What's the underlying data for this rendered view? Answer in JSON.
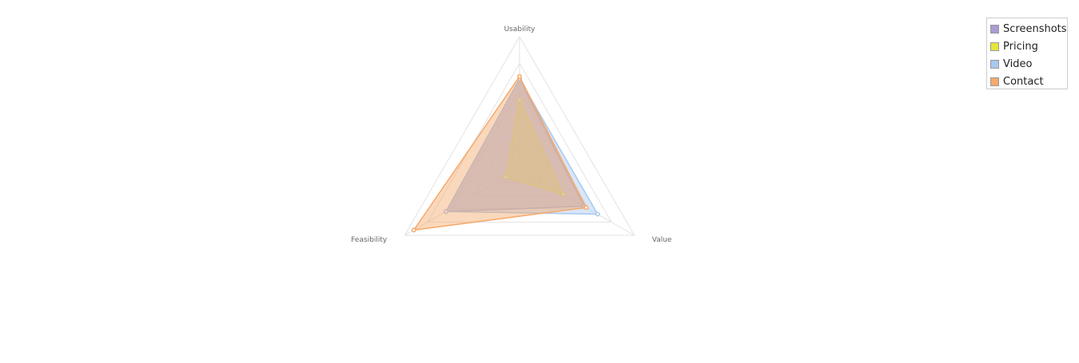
{
  "chart_data": {
    "type": "radar",
    "axes": [
      "Usability",
      "Value",
      "Feasibility"
    ],
    "range": [
      0,
      5
    ],
    "grid_levels": 5,
    "legend_position": "top-right",
    "series": [
      {
        "name": "Screenshots",
        "color": "#a99bd1",
        "values": [
          3.4,
          2.8,
          3.2
        ]
      },
      {
        "name": "Pricing",
        "color": "#e5e53a",
        "values": [
          2.6,
          1.9,
          0.6
        ]
      },
      {
        "name": "Video",
        "color": "#a8c8ef",
        "values": [
          3.4,
          3.4,
          3.2
        ]
      },
      {
        "name": "Contact",
        "color": "#f5a96b",
        "values": [
          3.5,
          2.9,
          4.6
        ]
      }
    ]
  }
}
